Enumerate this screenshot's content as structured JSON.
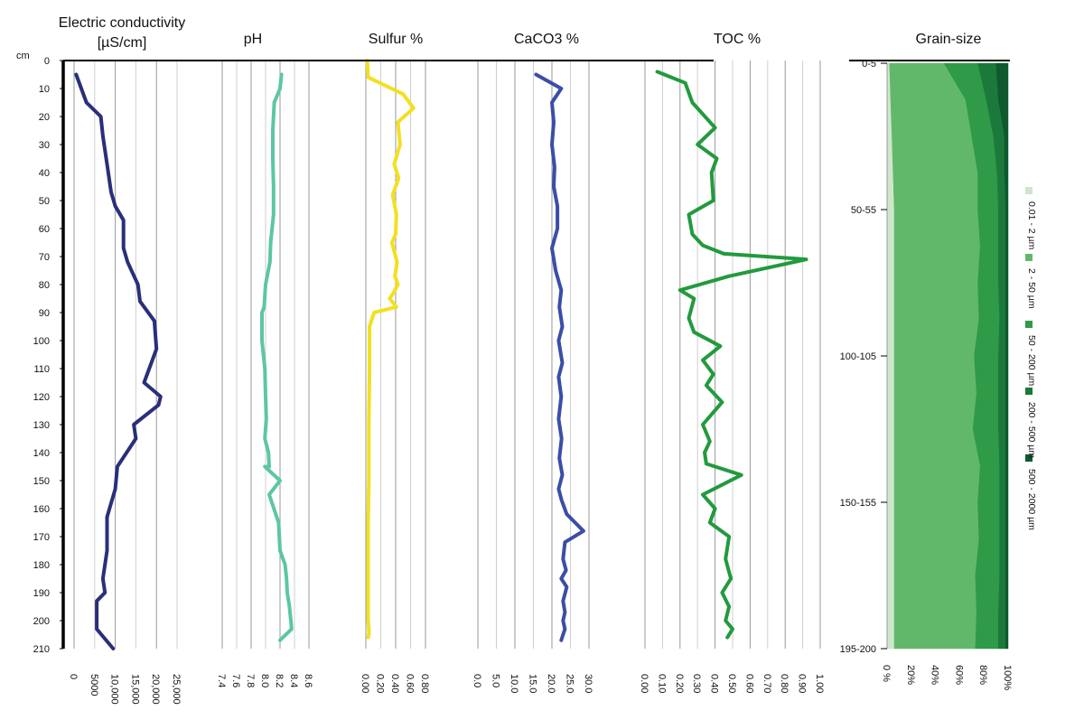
{
  "chart_data": [
    {
      "type": "line",
      "title": "Electric conductivity\n[µS/cm]",
      "xlim": [
        0,
        25000
      ],
      "xticks": [
        "0",
        "5000",
        "10,000",
        "15,000",
        "20,000",
        "25,000"
      ],
      "ylim": [
        0,
        210
      ],
      "orientation": "depth-profile",
      "color": "#2a2f7a",
      "x": [
        500,
        3000,
        6500,
        7000,
        8000,
        9000,
        10000,
        12000,
        12000,
        13000,
        15500,
        16000,
        19500,
        20000,
        17000,
        21000,
        20500,
        14500,
        15000,
        10500,
        10000,
        8000,
        8000,
        7000,
        7500,
        5500,
        5500,
        9500
      ],
      "y": [
        5,
        15,
        20,
        27,
        37,
        47,
        52,
        57,
        67,
        72,
        80,
        86,
        93,
        103,
        115,
        120,
        123,
        130,
        135,
        145,
        153,
        163,
        175,
        185,
        190,
        193,
        203,
        210
      ]
    },
    {
      "type": "line",
      "title": "pH",
      "xlim": [
        7.4,
        8.6
      ],
      "xticks": [
        "7.4",
        "7.6",
        "7.8",
        "8.0",
        "8.2",
        "8.4",
        "8.6"
      ],
      "ylim": [
        0,
        210
      ],
      "orientation": "depth-profile",
      "color": "#5cc7a1",
      "x": [
        8.22,
        8.2,
        8.12,
        8.1,
        8.1,
        8.11,
        8.11,
        8.09,
        8.07,
        8.06,
        8.0,
        7.98,
        7.95,
        7.95,
        7.99,
        8.0,
        8.01,
        7.99,
        8.04,
        8.05,
        7.99,
        8.2,
        8.05,
        8.18,
        8.2,
        8.27,
        8.29,
        8.3,
        8.33,
        8.35,
        8.36,
        8.2
      ],
      "y": [
        5,
        10,
        15,
        25,
        35,
        45,
        55,
        60,
        65,
        72,
        80,
        88,
        90,
        100,
        110,
        120,
        128,
        135,
        140,
        145,
        145,
        150,
        155,
        165,
        175,
        180,
        185,
        190,
        195,
        200,
        203,
        207
      ]
    },
    {
      "type": "line",
      "title": "Sulfur %",
      "xlim": [
        0,
        0.8
      ],
      "xticks": [
        "0.00",
        "0.20",
        "0.40",
        "0.60",
        "0.80"
      ],
      "ylim": [
        0,
        210
      ],
      "orientation": "depth-profile",
      "color": "#f2e021",
      "x": [
        0.02,
        0.03,
        0.5,
        0.64,
        0.43,
        0.46,
        0.38,
        0.44,
        0.36,
        0.41,
        0.4,
        0.35,
        0.42,
        0.39,
        0.43,
        0.37,
        0.32,
        0.41,
        0.11,
        0.05,
        0.05,
        0.04,
        0.04,
        0.03,
        0.03,
        0.03,
        0.03,
        0.04,
        0.04,
        0.03
      ],
      "y": [
        0,
        6,
        12,
        17,
        22,
        30,
        37,
        42,
        48,
        55,
        62,
        65,
        72,
        77,
        80,
        83,
        85,
        88,
        90,
        95,
        110,
        130,
        150,
        165,
        180,
        190,
        200,
        203,
        205,
        206
      ]
    },
    {
      "type": "line",
      "title": "CaCO3 %",
      "xlim": [
        0,
        30
      ],
      "xticks": [
        "0.0",
        "5.0",
        "10.0",
        "15.0",
        "20.0",
        "25.0",
        "30.0"
      ],
      "ylim": [
        0,
        210
      ],
      "orientation": "depth-profile",
      "color": "#3b4ea6",
      "x": [
        15.7,
        22.5,
        20.0,
        20.5,
        20.0,
        20.7,
        20.5,
        21.5,
        21.5,
        20.0,
        21.0,
        22.5,
        22.0,
        22.8,
        21.8,
        22.8,
        21.8,
        22.5,
        21.8,
        22.6,
        22.0,
        22.8,
        21.8,
        22.6,
        24.0,
        28.5,
        23.5,
        23.0,
        23.8,
        22.5,
        24.0,
        23.0,
        23.5,
        23.0,
        23.5,
        23.0,
        22.5
      ],
      "y": [
        5,
        10,
        15,
        22,
        30,
        38,
        45,
        52,
        60,
        67,
        75,
        82,
        88,
        95,
        100,
        108,
        113,
        120,
        128,
        135,
        142,
        148,
        153,
        157,
        162,
        168,
        172,
        178,
        182,
        185,
        188,
        193,
        197,
        200,
        203,
        205,
        207
      ]
    },
    {
      "type": "line",
      "title": "TOC %",
      "xlim": [
        0,
        1.0
      ],
      "xticks": [
        "0.00",
        "0.10",
        "0.20",
        "0.30",
        "0.40",
        "0.50",
        "0.60",
        "0.70",
        "0.80",
        "0.90",
        "1.00"
      ],
      "ylim": [
        0,
        210
      ],
      "orientation": "depth-profile",
      "color": "#229a3e",
      "x": [
        0.07,
        0.23,
        0.27,
        0.4,
        0.3,
        0.41,
        0.38,
        0.39,
        0.25,
        0.27,
        0.33,
        0.45,
        0.92,
        0.48,
        0.2,
        0.28,
        0.25,
        0.28,
        0.43,
        0.33,
        0.39,
        0.35,
        0.44,
        0.33,
        0.37,
        0.34,
        0.35,
        0.55,
        0.33,
        0.4,
        0.37,
        0.48,
        0.46,
        0.49,
        0.44,
        0.48,
        0.46,
        0.5,
        0.47
      ],
      "y": [
        4,
        8,
        15,
        24,
        30,
        35,
        40,
        50,
        55,
        62,
        66,
        69,
        71,
        77,
        82,
        85,
        92,
        97,
        102,
        107,
        112,
        116,
        122,
        130,
        136,
        140,
        144,
        148,
        155,
        160,
        165,
        170,
        178,
        185,
        190,
        195,
        200,
        203,
        206
      ]
    },
    {
      "type": "area",
      "title": "Grain-size",
      "stacked": true,
      "orientation": "depth-profile",
      "x_unit": "%",
      "xticks": [
        "0 %",
        "20%",
        "40%",
        "60%",
        "80%",
        "100%"
      ],
      "categories": [
        "0-5",
        "15-20",
        "25-30",
        "35-40",
        "50-55",
        "65-70",
        "75-80",
        "90-95",
        "100-105",
        "115-120",
        "125-130",
        "140-145",
        "150-155",
        "165-170",
        "175-180",
        "185-190",
        "195-200"
      ],
      "category_ticks": [
        "0-5",
        "50-55",
        "100-105",
        "150-155",
        "195-200"
      ],
      "series": [
        {
          "name": "0.01 - 2 µm",
          "color": "#cfe6cd",
          "values": [
            2,
            3,
            4,
            5,
            6,
            6,
            6,
            6,
            6,
            6,
            6,
            6,
            6,
            6,
            6,
            6,
            6
          ]
        },
        {
          "name": "2 - 50 µm",
          "color": "#62b86a",
          "values": [
            45,
            62,
            66,
            70,
            69,
            71,
            69,
            70,
            66,
            68,
            65,
            71,
            69,
            70,
            67,
            68,
            67
          ]
        },
        {
          "name": "50 - 200 µm",
          "color": "#2f9a47",
          "values": [
            28,
            17,
            18,
            16,
            17,
            15,
            17,
            17,
            20,
            18,
            21,
            16,
            18,
            17,
            20,
            18,
            19
          ]
        },
        {
          "name": "200 - 500 µm",
          "color": "#1b7a3b",
          "values": [
            15,
            10,
            9,
            6,
            6,
            6,
            6,
            5,
            6,
            6,
            6,
            5,
            5,
            5,
            5,
            6,
            6
          ]
        },
        {
          "name": "500 - 2000 µm",
          "color": "#0e5a2e",
          "values": [
            10,
            8,
            3,
            3,
            2,
            2,
            2,
            2,
            2,
            2,
            2,
            2,
            2,
            2,
            2,
            2,
            2
          ]
        }
      ]
    }
  ],
  "depth_axis": {
    "unit": "cm",
    "ticks": [
      "0",
      "10",
      "20",
      "30",
      "40",
      "50",
      "60",
      "70",
      "80",
      "90",
      "100",
      "110",
      "120",
      "130",
      "140",
      "150",
      "160",
      "170",
      "180",
      "190",
      "200",
      "210"
    ]
  },
  "colors": {
    "axis": "#000000",
    "grid": "#bbbbbb"
  }
}
